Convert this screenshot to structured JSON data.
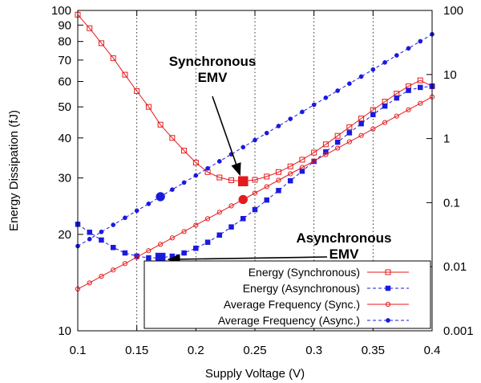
{
  "chart_data": {
    "type": "line",
    "xlabel": "Supply Voltage (V)",
    "ylabel": "Energy Dissipation (fJ)",
    "xlim": [
      0.1,
      0.4
    ],
    "ylim_left": [
      10,
      100
    ],
    "ylim_right": [
      0.001,
      100
    ],
    "left_scale": "log",
    "right_scale": "log",
    "grid": "vertical dotted",
    "legend_position": "bottom-right",
    "x_ticks": [
      "0.1",
      "0.15",
      "0.2",
      "0.25",
      "0.3",
      "0.35",
      "0.4"
    ],
    "x_tick_values": [
      0.1,
      0.15,
      0.2,
      0.25,
      0.3,
      0.35,
      0.4
    ],
    "y_left_ticks": [
      "10",
      "20",
      "30",
      "40",
      "50",
      "60",
      "70",
      "80",
      "90",
      "100"
    ],
    "y_left_tick_values": [
      10,
      20,
      30,
      40,
      50,
      60,
      70,
      80,
      90,
      100
    ],
    "y_right_ticks": [
      "0.001",
      "0.01",
      "0.1",
      "1",
      "10",
      "100"
    ],
    "y_right_tick_values": [
      0.001,
      0.01,
      0.1,
      1,
      10,
      100
    ],
    "series": [
      {
        "name": "Energy (Synchronous)",
        "axis": "left",
        "color": "#e41a1c",
        "marker": "open-square",
        "line": "solid",
        "x": [
          0.1,
          0.11,
          0.12,
          0.13,
          0.14,
          0.15,
          0.16,
          0.17,
          0.18,
          0.19,
          0.2,
          0.21,
          0.22,
          0.23,
          0.24,
          0.25,
          0.26,
          0.27,
          0.28,
          0.29,
          0.3,
          0.31,
          0.32,
          0.33,
          0.34,
          0.35,
          0.36,
          0.37,
          0.38,
          0.39,
          0.4
        ],
        "values": [
          97,
          88,
          79,
          71,
          63,
          56,
          50,
          44,
          40,
          36.5,
          33.5,
          31.3,
          30.1,
          29.5,
          29.3,
          29.6,
          30.3,
          31.3,
          32.6,
          34.2,
          36,
          38.2,
          40.6,
          43.2,
          46,
          48.9,
          51.9,
          55,
          58,
          60.5,
          58
        ]
      },
      {
        "name": "Energy (Asynchronous)",
        "axis": "left",
        "color": "#1a1adf",
        "marker": "filled-square",
        "line": "dashed",
        "x": [
          0.1,
          0.11,
          0.12,
          0.13,
          0.14,
          0.15,
          0.16,
          0.17,
          0.18,
          0.19,
          0.2,
          0.21,
          0.22,
          0.23,
          0.24,
          0.25,
          0.26,
          0.27,
          0.28,
          0.29,
          0.3,
          0.31,
          0.32,
          0.33,
          0.34,
          0.35,
          0.36,
          0.37,
          0.38,
          0.39,
          0.4
        ],
        "values": [
          21.5,
          20.3,
          19.2,
          18.2,
          17.5,
          17.1,
          16.9,
          16.9,
          17.1,
          17.5,
          18.1,
          18.9,
          19.9,
          21.1,
          22.4,
          23.9,
          25.6,
          27.4,
          29.4,
          31.5,
          33.8,
          36.2,
          38.8,
          41.5,
          44.3,
          47.3,
          50.3,
          53.3,
          56.3,
          57.5,
          58
        ]
      },
      {
        "name": "Average Frequency (Sync.)",
        "axis": "right",
        "color": "#e41a1c",
        "marker": "open-circle",
        "line": "solid",
        "x": [
          0.1,
          0.11,
          0.12,
          0.13,
          0.14,
          0.15,
          0.16,
          0.17,
          0.18,
          0.19,
          0.2,
          0.21,
          0.22,
          0.23,
          0.24,
          0.25,
          0.26,
          0.27,
          0.28,
          0.29,
          0.3,
          0.31,
          0.32,
          0.33,
          0.34,
          0.35,
          0.36,
          0.37,
          0.38,
          0.39,
          0.4
        ],
        "values": [
          0.0045,
          0.0056,
          0.0071,
          0.0089,
          0.0112,
          0.0141,
          0.0178,
          0.0224,
          0.0282,
          0.0355,
          0.0447,
          0.0562,
          0.0708,
          0.0891,
          0.112,
          0.141,
          0.178,
          0.224,
          0.282,
          0.355,
          0.447,
          0.562,
          0.708,
          0.891,
          1.12,
          1.41,
          1.78,
          2.24,
          2.82,
          3.55,
          4.47
        ]
      },
      {
        "name": "Average Frequency (Async.)",
        "axis": "right",
        "color": "#1a1adf",
        "marker": "filled-circle",
        "line": "dashed",
        "x": [
          0.1,
          0.11,
          0.12,
          0.13,
          0.14,
          0.15,
          0.16,
          0.17,
          0.18,
          0.19,
          0.2,
          0.21,
          0.22,
          0.23,
          0.24,
          0.25,
          0.26,
          0.27,
          0.28,
          0.29,
          0.3,
          0.31,
          0.32,
          0.33,
          0.34,
          0.35,
          0.36,
          0.37,
          0.38,
          0.39,
          0.4
        ],
        "values": [
          0.021,
          0.027,
          0.035,
          0.045,
          0.058,
          0.075,
          0.096,
          0.124,
          0.16,
          0.206,
          0.266,
          0.343,
          0.442,
          0.569,
          0.734,
          0.946,
          1.22,
          1.57,
          2.03,
          2.61,
          3.37,
          4.34,
          5.59,
          7.21,
          9.29,
          11.97,
          15.43,
          19.89,
          25.6,
          33.0,
          42.5
        ]
      }
    ],
    "highlights": [
      {
        "series": "Energy (Synchronous)",
        "x": 0.24,
        "value": 29.3,
        "axis": "left",
        "marker": "filled-square",
        "color": "#e41a1c"
      },
      {
        "series": "Average Frequency (Sync.)",
        "x": 0.24,
        "value": 0.112,
        "axis": "right",
        "marker": "filled-circle",
        "color": "#e41a1c"
      },
      {
        "series": "Energy (Asynchronous)",
        "x": 0.17,
        "value": 16.9,
        "axis": "left",
        "marker": "filled-square",
        "color": "#1a1adf"
      },
      {
        "series": "Average Frequency (Async.)",
        "x": 0.17,
        "value": 0.124,
        "axis": "right",
        "marker": "filled-circle",
        "color": "#1a1adf"
      }
    ],
    "annotations": [
      {
        "lines": [
          "Synchronous",
          "EMV"
        ],
        "points_to": {
          "x": 0.24,
          "value": 29.3,
          "axis": "left"
        }
      },
      {
        "lines": [
          "Asynchronous",
          "EMV"
        ],
        "points_to": {
          "x": 0.17,
          "value": 16.9,
          "axis": "left"
        }
      }
    ]
  }
}
